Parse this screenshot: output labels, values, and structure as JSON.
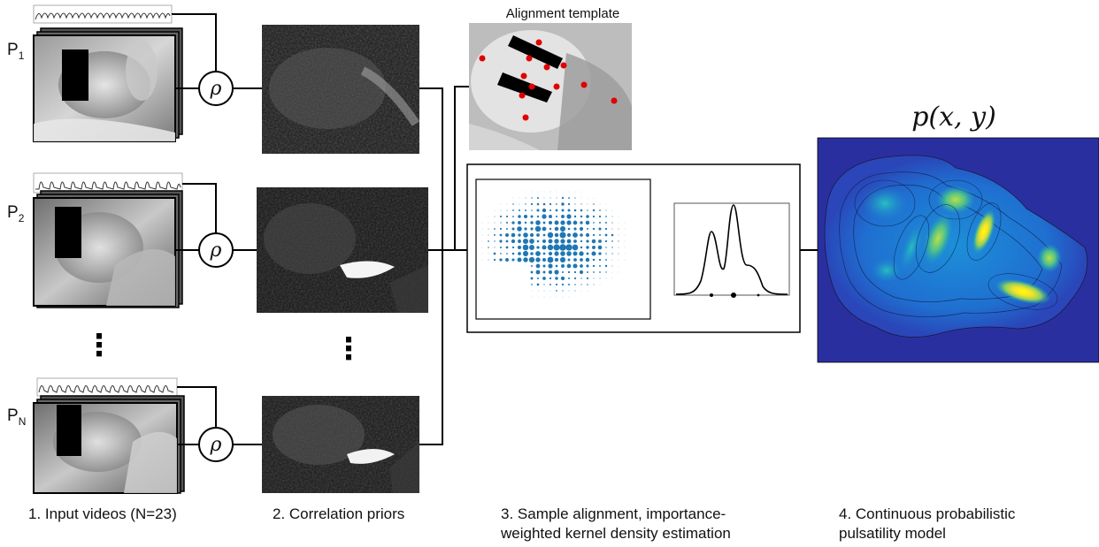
{
  "participants": [
    {
      "label": "P",
      "sub": "1"
    },
    {
      "label": "P",
      "sub": "2"
    },
    {
      "label": "P",
      "sub": "N"
    }
  ],
  "operator_symbol": "ρ",
  "ellipsis": "⋮",
  "alignment_template_title": "Alignment template",
  "model_formula": "p(x, y)",
  "captions": [
    {
      "lines": [
        "1. Input videos (N=23)"
      ]
    },
    {
      "lines": [
        "2. Correlation priors"
      ]
    },
    {
      "lines": [
        "3. Sample alignment, importance-",
        "weighted kernel density estimation"
      ]
    },
    {
      "lines": [
        "4. Continuous probabilistic",
        "pulsatility model"
      ]
    }
  ],
  "colors": {
    "landmark": "#e00000",
    "scatter": "#1f77b4",
    "line": "#000000"
  }
}
